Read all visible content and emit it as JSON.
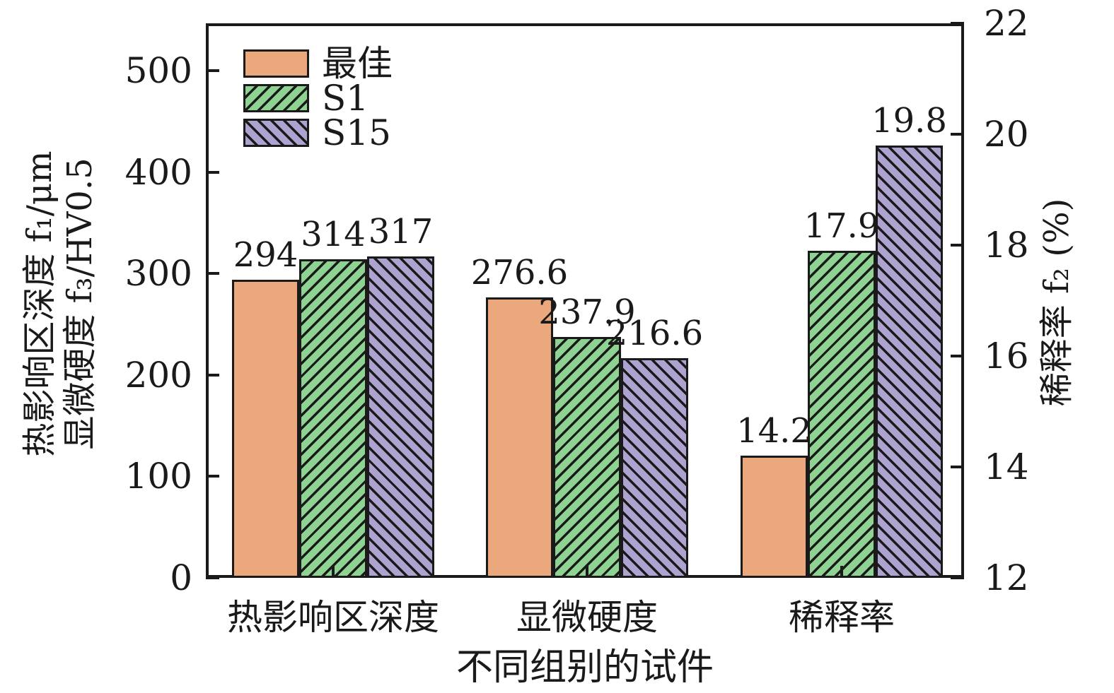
{
  "chart_data": {
    "type": "bar",
    "title": "",
    "categories": [
      "热影响区深度",
      "显微硬度",
      "稀释率"
    ],
    "category_axis": [
      "left",
      "left",
      "right"
    ],
    "series": [
      {
        "name": "最佳",
        "color": "#ECA87D",
        "hatch": "none",
        "values": [
          294,
          276.6,
          14.2
        ],
        "labels": [
          "294",
          "276.6",
          "14.2"
        ]
      },
      {
        "name": "S1",
        "color": "#8FD392",
        "hatch": "/",
        "values": [
          314,
          237.9,
          17.9
        ],
        "labels": [
          "314",
          "237.9",
          "17.9"
        ]
      },
      {
        "name": "S15",
        "color": "#AEA2D1",
        "hatch": "\\",
        "values": [
          317,
          216.6,
          19.8
        ],
        "labels": [
          "317",
          "216.6",
          "19.8"
        ]
      }
    ],
    "left_axis": {
      "title_line1": "热影响区深度 f₁/μm",
      "title_line2": "显微硬度 f₃/HV0.5",
      "min": 0,
      "max": 547,
      "ticks": [
        0,
        100,
        200,
        300,
        400,
        500
      ]
    },
    "right_axis": {
      "title": "稀释率 f₂ (%)",
      "min": 12,
      "max": 22,
      "ticks": [
        12,
        14,
        16,
        18,
        20,
        22
      ]
    },
    "xlabel": "不同组别的试件",
    "legend_position": "top-left",
    "grid": false
  },
  "colors": {
    "axis": "#1a1a1a",
    "bar_border": "#1a1a1a",
    "hatch": "#1a1a1a",
    "background": "#ffffff"
  }
}
